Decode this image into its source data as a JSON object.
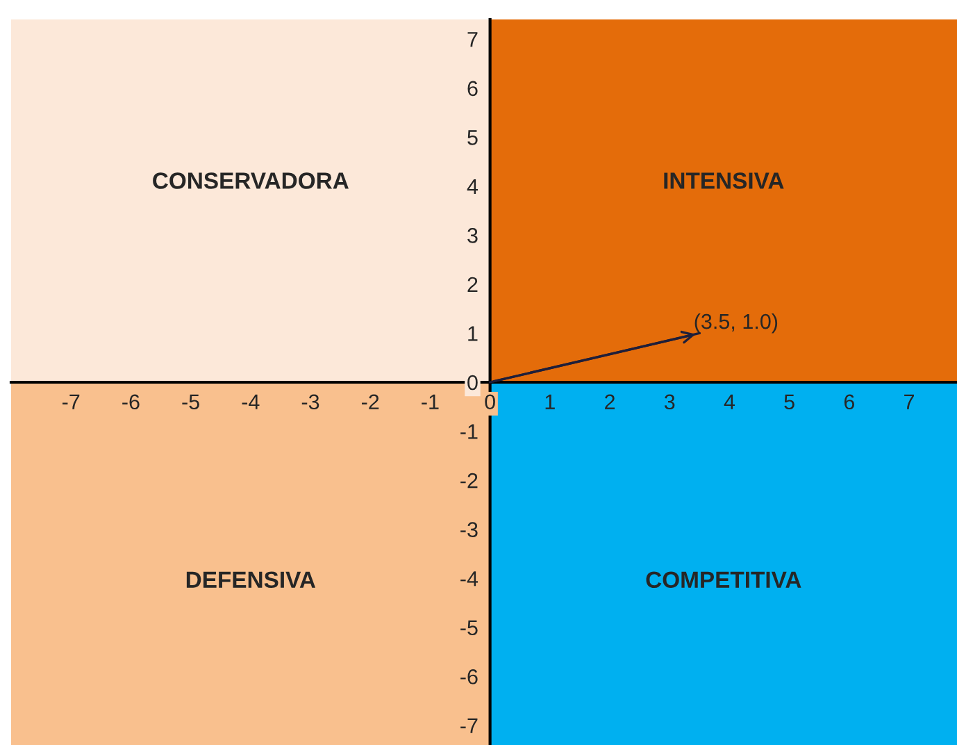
{
  "chart_data": {
    "type": "line",
    "x": [
      0,
      3.5
    ],
    "series": [
      {
        "color": "#1f1f3a",
        "values": [
          0,
          1.0
        ]
      }
    ],
    "xlim": [
      -8,
      7.8
    ],
    "ylim": [
      -7.4,
      7.4
    ],
    "xticks": [
      -7,
      -6,
      -5,
      -4,
      -3,
      -2,
      -1,
      0,
      1,
      2,
      3,
      4,
      5,
      6,
      7
    ],
    "yticks": [
      -7,
      -6,
      -5,
      -4,
      -3,
      -2,
      -1,
      0,
      1,
      2,
      3,
      4,
      5,
      6,
      7
    ],
    "annotations": [
      {
        "text": "(3.5, 1.0)",
        "x": 3.5,
        "y": 1.0
      },
      "CONSERVADORA",
      "INTENSIVA",
      "DEFENSIVA",
      "COMPETITIVA"
    ],
    "grid": false,
    "legend": false,
    "marker": "none",
    "line_style": "solid"
  }
}
